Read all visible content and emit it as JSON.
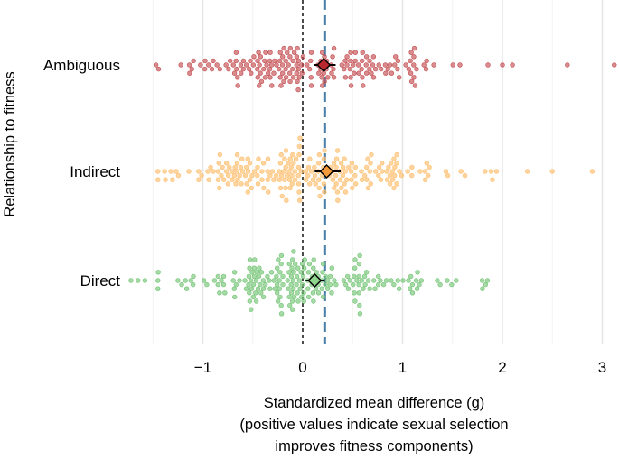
{
  "chart_data": {
    "type": "beeswarm",
    "title": "",
    "xlabel_lines": [
      "Standardized mean difference (g)",
      "(positive values indicate sexual selection",
      "improves fitness components)"
    ],
    "ylabel": "Relationship to fitness",
    "xlim": [
      -1.5,
      3.15
    ],
    "xticks": [
      -1,
      0,
      1,
      2,
      3
    ],
    "xtick_labels": [
      "−1",
      "0",
      "1",
      "2",
      "3"
    ],
    "reference_line_null": 0,
    "overall_mean_line": 0.22,
    "grid": true,
    "series": [
      {
        "name": "Ambiguous",
        "color": "#c44e52",
        "mean_color": "#b8282e",
        "mean": 0.21,
        "ci": [
          0.11,
          0.33
        ],
        "n": 180,
        "spread": 0.55,
        "skew": 0.35,
        "extremes": [
          -1.47,
          -1.22,
          -0.98,
          2.0,
          2.1,
          2.65,
          3.12
        ]
      },
      {
        "name": "Indirect",
        "color": "#fdbf6f",
        "mean_color": "#f59a3a",
        "mean": 0.24,
        "ci": [
          0.12,
          0.38
        ],
        "n": 210,
        "spread": 0.6,
        "skew": 0.4,
        "extremes": [
          -1.45,
          -1.32,
          -0.95,
          1.9,
          2.25,
          2.5,
          2.9
        ]
      },
      {
        "name": "Direct",
        "color": "#74c476",
        "mean_color": "#8fd48d",
        "mean": 0.12,
        "ci": [
          0.03,
          0.22
        ],
        "n": 200,
        "spread": 0.55,
        "skew": 0.2,
        "extremes": [
          -1.72,
          -1.65,
          -1.58,
          -1.25,
          1.8,
          1.85
        ]
      }
    ]
  }
}
